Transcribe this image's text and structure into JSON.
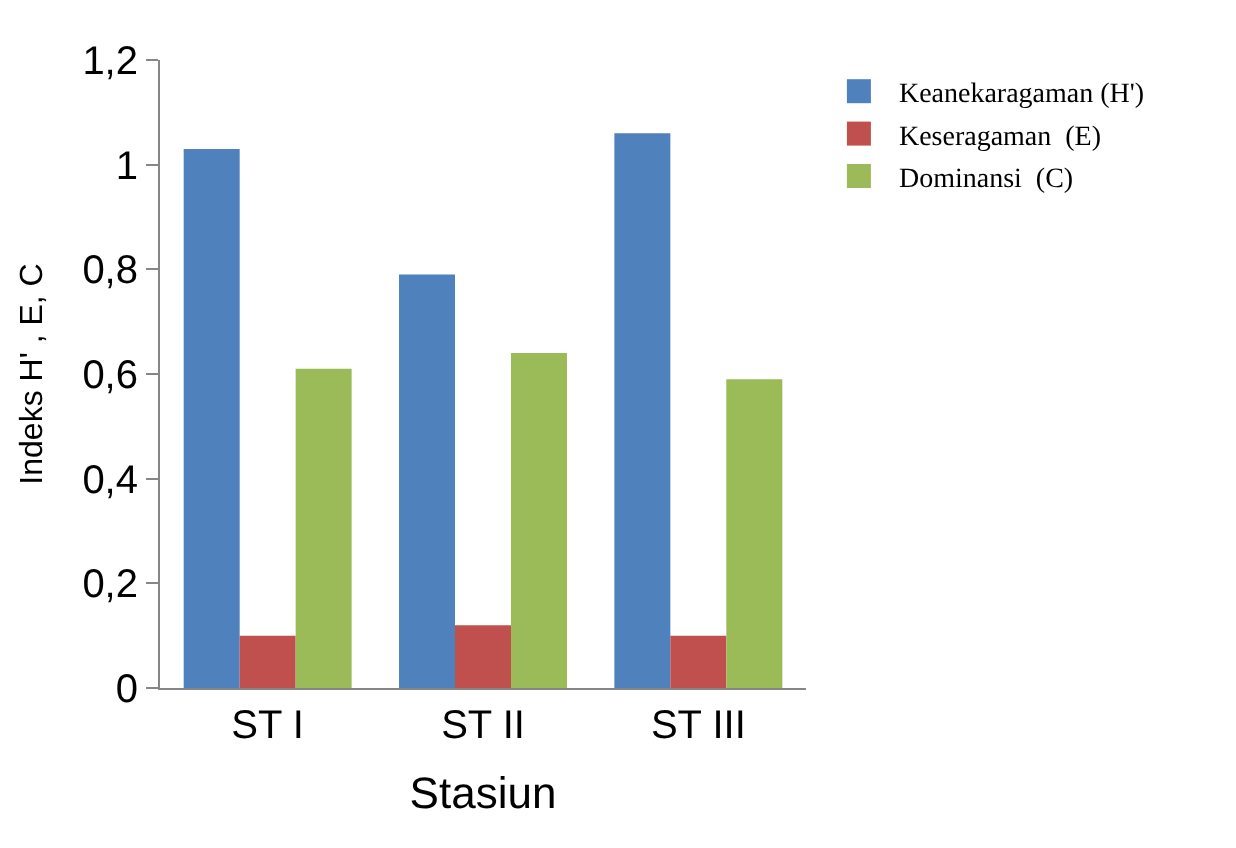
{
  "chart_data": {
    "type": "bar",
    "xlabel": "Stasiun",
    "ylabel": "Indeks H' , E, C",
    "categories": [
      "ST I",
      "ST II",
      "ST III"
    ],
    "series": [
      {
        "name": "Keanekaragaman (H')",
        "color": "#4f81bd",
        "values": [
          1.03,
          0.79,
          1.06
        ]
      },
      {
        "name": "Keseragaman  (E)",
        "color": "#c0504d",
        "values": [
          0.1,
          0.12,
          0.1
        ]
      },
      {
        "name": "Dominansi  (C)",
        "color": "#9bbb59",
        "values": [
          0.61,
          0.64,
          0.59
        ]
      }
    ],
    "ylim": [
      0,
      1.2
    ],
    "yticks": [
      0,
      {
        "value": 0.2,
        "label": "0,2"
      },
      {
        "value": 0.4,
        "label": "0,4"
      },
      {
        "value": 0.6,
        "label": "0,6"
      },
      {
        "value": 0.8,
        "label": "0,8"
      },
      1,
      {
        "value": 1.2,
        "label": "1,2"
      }
    ],
    "grid": false,
    "legend": "top right"
  }
}
